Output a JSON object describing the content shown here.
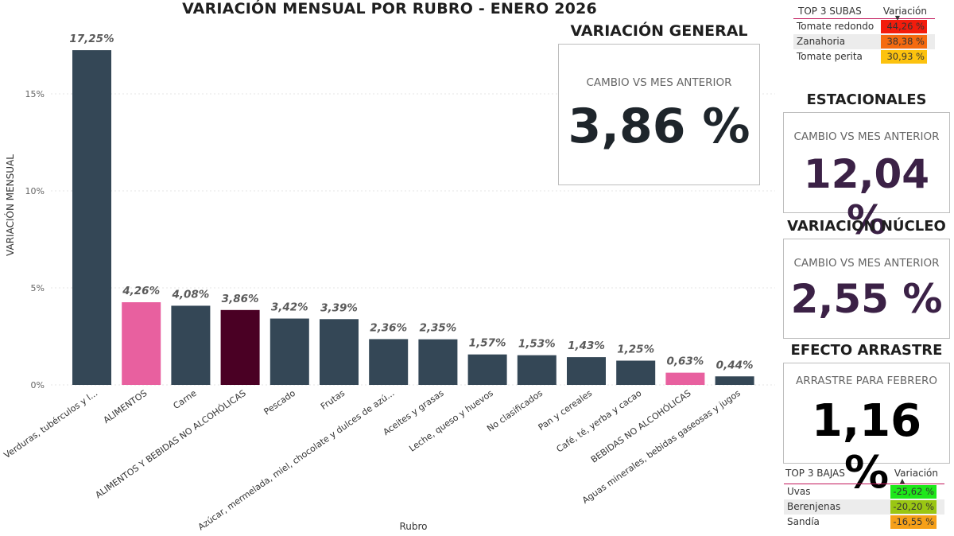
{
  "chart_title": "VARIACIÓN MENSUAL POR RUBRO - ENERO 2026",
  "chart_data": {
    "type": "bar",
    "xlabel": "Rubro",
    "ylabel": "VARIACIÓN MENSUAL",
    "ylim": [
      0,
      17.5
    ],
    "yticks": [
      "0%",
      "5%",
      "10%",
      "15%"
    ],
    "grid": true,
    "categories": [
      "Verduras, tubérculos y l...",
      "ALIMENTOS",
      "Carne",
      "ALIMENTOS Y BEBIDAS NO ALCOHÓLICAS",
      "Pescado",
      "Frutas",
      "Azúcar, mermelada, miel, chocolate y dulces de azú...",
      "Aceites y grasas",
      "Leche, queso y huevos",
      "No clasificados",
      "Pan y cereales",
      "Café, té, yerba y cacao",
      "BEBIDAS NO ALCOHÓLICAS",
      "Aguas minerales, bebidas gaseosas y jugos"
    ],
    "values": [
      17.25,
      4.26,
      4.08,
      3.86,
      3.42,
      3.39,
      2.36,
      2.35,
      1.57,
      1.53,
      1.43,
      1.25,
      0.63,
      0.44
    ],
    "labels": [
      "17,25%",
      "4,26%",
      "4,08%",
      "3,86%",
      "3,42%",
      "3,39%",
      "2,36%",
      "2,35%",
      "1,57%",
      "1,53%",
      "1,43%",
      "1,25%",
      "0,63%",
      "0,44%"
    ],
    "colors": [
      "#344756",
      "#e8609f",
      "#344756",
      "#4a0024",
      "#344756",
      "#344756",
      "#344756",
      "#344756",
      "#344756",
      "#344756",
      "#344756",
      "#344756",
      "#e8609f",
      "#344756"
    ]
  },
  "general": {
    "title": "VARIACIÓN GENERAL",
    "label": "CAMBIO VS MES ANTERIOR",
    "value": "3,86 %",
    "color": "#1e252b"
  },
  "estacionales": {
    "title": "ESTACIONALES",
    "label": "CAMBIO VS MES ANTERIOR",
    "value": "12,04 %",
    "color": "#3b2146"
  },
  "nucleo": {
    "title": "VARIACIÓN NÚCLEO",
    "label": "CAMBIO VS MES ANTERIOR",
    "value": "2,55 %",
    "color": "#3b2146"
  },
  "arrastre": {
    "title": "EFECTO ARRASTRE",
    "label": "ARRASTRE PARA FEBRERO",
    "value": "1,16 %",
    "color": "#000000"
  },
  "top_subas": {
    "header_name": "TOP 3 SUBAS",
    "header_value": "Variación",
    "sort_icon": "sort-descending-icon",
    "rows": [
      {
        "name": "Tomate redondo",
        "value": "44,26 %",
        "color": "#f31c0c"
      },
      {
        "name": "Zanahoria",
        "value": "38,38 %",
        "color": "#f56a10"
      },
      {
        "name": "Tomate perita",
        "value": "30,93 %",
        "color": "#fcc20e"
      }
    ]
  },
  "top_bajas": {
    "header_name": "TOP 3 BAJAS",
    "header_value": "Variación",
    "sort_icon": "sort-ascending-icon",
    "rows": [
      {
        "name": "Uvas",
        "value": "-25,62 %",
        "color": "#1ee81a"
      },
      {
        "name": "Berenjenas",
        "value": "-20,20 %",
        "color": "#9ac613"
      },
      {
        "name": "Sandía",
        "value": "-16,55 %",
        "color": "#f6a019"
      }
    ]
  }
}
